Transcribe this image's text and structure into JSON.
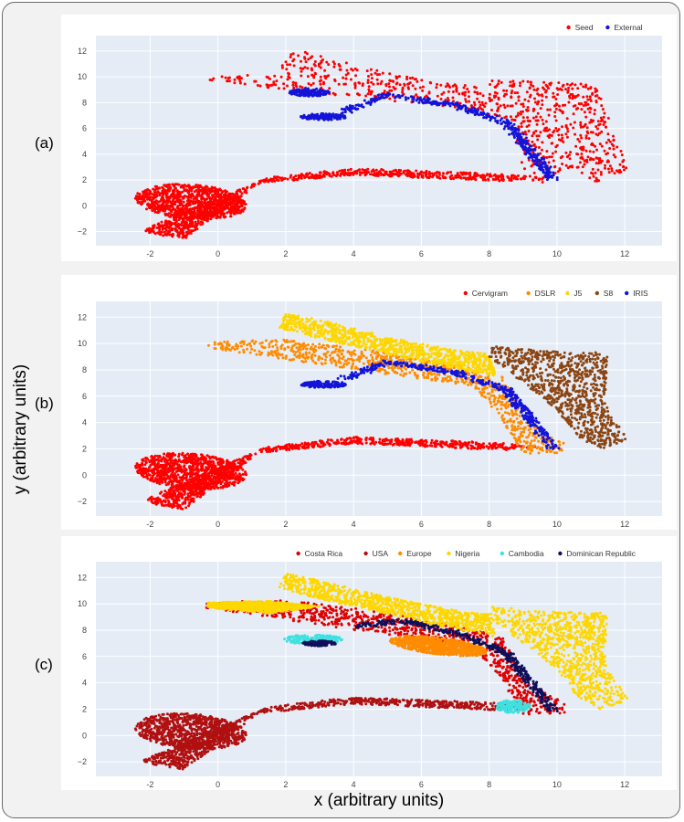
{
  "figure": {
    "xlabel": "x (arbitrary units)",
    "ylabel": "y (arbitrary units)",
    "panel_labels": [
      "(a)",
      "(b)",
      "(c)"
    ]
  },
  "chart_data": [
    {
      "type": "scatter",
      "panel": "(a)",
      "xlim": [
        -3.6,
        13.1
      ],
      "ylim": [
        -3.1,
        13.2
      ],
      "xticks": [
        -2,
        0,
        2,
        4,
        6,
        8,
        10,
        12
      ],
      "yticks": [
        -2,
        0,
        2,
        4,
        6,
        8,
        10,
        12
      ],
      "grid": true,
      "legend_position": "top-right",
      "background": "#e5ecf6",
      "series": [
        {
          "name": "Seed",
          "color": "#ff0000",
          "layer": 0,
          "regions": [
            {
              "shape": "ellipse",
              "cx": -0.8,
              "cy": 0.3,
              "rx": 1.7,
              "ry": 1.3,
              "rot": -25
            },
            {
              "shape": "poly",
              "pts": [
                [
                  -2.3,
                  -2.0
                ],
                [
                  -1.0,
                  -0.5
                ],
                [
                  1.5,
                  2.2
                ],
                [
                  4,
                  2.9
                ],
                [
                  8,
                  2.5
                ],
                [
                  9.5,
                  2.2
                ],
                [
                  8.5,
                  1.9
                ],
                [
                  4,
                  2.4
                ],
                [
                  1.2,
                  1.7
                ],
                [
                  -1.0,
                  -2.6
                ]
              ]
            },
            {
              "shape": "poly",
              "pts": [
                [
                  -0.2,
                  10.1
                ],
                [
                  1.8,
                  10.2
                ],
                [
                  2.1,
                  12.3
                ],
                [
                  4.2,
                  10.8
                ],
                [
                  6.5,
                  9.5
                ],
                [
                  8.0,
                  9.3
                ],
                [
                  8.1,
                  9.8
                ],
                [
                  11.2,
                  9.4
                ],
                [
                  12.1,
                  2.7
                ],
                [
                  11.2,
                  1.8
                ],
                [
                  10.4,
                  3.0
                ],
                [
                  9.6,
                  1.8
                ],
                [
                  9.1,
                  1.7
                ],
                [
                  8.7,
                  6.5
                ],
                [
                  7.2,
                  7.5
                ],
                [
                  4.5,
                  8.3
                ],
                [
                  3.0,
                  8.6
                ],
                [
                  1.0,
                  9.3
                ],
                [
                  -0.4,
                  9.8
                ]
              ]
            }
          ]
        },
        {
          "name": "External",
          "color": "#1414d8",
          "layer": 1,
          "regions": [
            {
              "shape": "line",
              "pts": [
                [
                  3.7,
                  7.3
                ],
                [
                  5.0,
                  8.6
                ],
                [
                  7.0,
                  7.8
                ],
                [
                  8.5,
                  6.5
                ],
                [
                  9.9,
                  2.1
                ]
              ],
              "width": 0.35
            },
            {
              "shape": "ellipse",
              "cx": 3.1,
              "cy": 6.9,
              "rx": 0.7,
              "ry": 0.25,
              "rot": 0
            },
            {
              "shape": "ellipse",
              "cx": 2.7,
              "cy": 8.8,
              "rx": 0.6,
              "ry": 0.3,
              "rot": 0
            }
          ]
        }
      ]
    },
    {
      "type": "scatter",
      "panel": "(b)",
      "xlim": [
        -3.6,
        13.1
      ],
      "ylim": [
        -3.1,
        13.2
      ],
      "xticks": [
        -2,
        0,
        2,
        4,
        6,
        8,
        10,
        12
      ],
      "yticks": [
        -2,
        0,
        2,
        4,
        6,
        8,
        10,
        12
      ],
      "grid": true,
      "legend_position": "top-right",
      "background": "#e5ecf6",
      "series": [
        {
          "name": "Cervigram",
          "color": "#ff0000",
          "layer": 0,
          "regions": [
            {
              "shape": "ellipse",
              "cx": -0.8,
              "cy": 0.3,
              "rx": 1.7,
              "ry": 1.3,
              "rot": -25
            },
            {
              "shape": "poly",
              "pts": [
                [
                  -2.3,
                  -2.0
                ],
                [
                  -1.0,
                  -0.5
                ],
                [
                  1.5,
                  2.2
                ],
                [
                  4,
                  2.9
                ],
                [
                  8,
                  2.5
                ],
                [
                  9.5,
                  2.2
                ],
                [
                  8.5,
                  1.9
                ],
                [
                  4,
                  2.4
                ],
                [
                  1.2,
                  1.7
                ],
                [
                  -1.0,
                  -2.6
                ]
              ]
            }
          ]
        },
        {
          "name": "DSLR",
          "color": "#ff8c00",
          "layer": 1,
          "regions": [
            {
              "shape": "poly",
              "pts": [
                [
                  -0.3,
                  10.1
                ],
                [
                  2.0,
                  10.3
                ],
                [
                  4.5,
                  9.5
                ],
                [
                  7.0,
                  8.4
                ],
                [
                  8.4,
                  7.5
                ],
                [
                  9.1,
                  4.0
                ],
                [
                  10.2,
                  2.5
                ],
                [
                  10.3,
                  1.7
                ],
                [
                  9.0,
                  1.6
                ],
                [
                  8.3,
                  4.5
                ],
                [
                  7.5,
                  6.8
                ],
                [
                  5.5,
                  7.5
                ],
                [
                  3.5,
                  8.2
                ],
                [
                  1.5,
                  9.0
                ],
                [
                  -0.4,
                  9.7
                ]
              ]
            }
          ]
        },
        {
          "name": "J5",
          "color": "#ffd700",
          "layer": 2,
          "regions": [
            {
              "shape": "poly",
              "pts": [
                [
                  2.0,
                  12.3
                ],
                [
                  3.0,
                  11.8
                ],
                [
                  5.0,
                  10.5
                ],
                [
                  7.0,
                  9.5
                ],
                [
                  8.0,
                  9.2
                ],
                [
                  8.2,
                  7.5
                ],
                [
                  6.5,
                  8.3
                ],
                [
                  4.5,
                  9.5
                ],
                [
                  2.8,
                  10.5
                ],
                [
                  1.8,
                  11.2
                ]
              ]
            }
          ]
        },
        {
          "name": "S8",
          "color": "#8b4513",
          "layer": 3,
          "regions": [
            {
              "shape": "poly",
              "pts": [
                [
                  8.1,
                  9.8
                ],
                [
                  9.8,
                  9.4
                ],
                [
                  11.5,
                  9.3
                ],
                [
                  11.4,
                  5.5
                ],
                [
                  12.1,
                  2.7
                ],
                [
                  11.3,
                  2.0
                ],
                [
                  10.6,
                  2.9
                ],
                [
                  10.0,
                  5.0
                ],
                [
                  9.0,
                  7.0
                ],
                [
                  7.9,
                  9.2
                ]
              ]
            }
          ]
        },
        {
          "name": "IRIS",
          "color": "#1414d8",
          "layer": 4,
          "regions": [
            {
              "shape": "line",
              "pts": [
                [
                  3.7,
                  7.3
                ],
                [
                  5.0,
                  8.6
                ],
                [
                  7.0,
                  7.8
                ],
                [
                  8.5,
                  6.5
                ],
                [
                  9.9,
                  2.1
                ]
              ],
              "width": 0.35
            },
            {
              "shape": "ellipse",
              "cx": 3.1,
              "cy": 6.9,
              "rx": 0.7,
              "ry": 0.25,
              "rot": 0
            }
          ]
        }
      ]
    },
    {
      "type": "scatter",
      "panel": "(c)",
      "xlim": [
        -3.6,
        13.1
      ],
      "ylim": [
        -3.1,
        13.2
      ],
      "xticks": [
        -2,
        0,
        2,
        4,
        6,
        8,
        10,
        12
      ],
      "yticks": [
        -2,
        0,
        2,
        4,
        6,
        8,
        10,
        12
      ],
      "grid": true,
      "legend_position": "top-right",
      "background": "#e5ecf6",
      "series": [
        {
          "name": "Costa Rica",
          "color": "#e00000",
          "layer": 0,
          "regions": [
            {
              "shape": "poly",
              "pts": [
                [
                  -0.3,
                  10.1
                ],
                [
                  2.0,
                  10.3
                ],
                [
                  4.5,
                  9.5
                ],
                [
                  7.0,
                  8.4
                ],
                [
                  8.4,
                  7.5
                ],
                [
                  9.1,
                  4.0
                ],
                [
                  10.2,
                  2.5
                ],
                [
                  10.3,
                  1.7
                ],
                [
                  9.0,
                  1.6
                ],
                [
                  8.3,
                  4.5
                ],
                [
                  7.5,
                  6.8
                ],
                [
                  5.5,
                  7.5
                ],
                [
                  3.5,
                  8.2
                ],
                [
                  1.5,
                  9.0
                ],
                [
                  -0.4,
                  9.7
                ]
              ]
            }
          ]
        },
        {
          "name": "USA",
          "color": "#b01010",
          "layer": 1,
          "regions": [
            {
              "shape": "ellipse",
              "cx": -0.8,
              "cy": 0.3,
              "rx": 1.7,
              "ry": 1.3,
              "rot": -25
            },
            {
              "shape": "poly",
              "pts": [
                [
                  -2.3,
                  -2.0
                ],
                [
                  -1.0,
                  -0.5
                ],
                [
                  1.5,
                  2.2
                ],
                [
                  4,
                  2.9
                ],
                [
                  8,
                  2.5
                ],
                [
                  9.5,
                  2.2
                ],
                [
                  8.5,
                  1.9
                ],
                [
                  4,
                  2.4
                ],
                [
                  1.2,
                  1.7
                ],
                [
                  -1.0,
                  -2.6
                ]
              ]
            }
          ]
        },
        {
          "name": "Europe",
          "color": "#ff8c00",
          "layer": 2,
          "regions": [
            {
              "shape": "ellipse",
              "cx": 6.5,
              "cy": 6.8,
              "rx": 1.5,
              "ry": 0.6,
              "rot": -20
            }
          ]
        },
        {
          "name": "Nigeria",
          "color": "#ffd700",
          "layer": 3,
          "regions": [
            {
              "shape": "poly",
              "pts": [
                [
                  2.0,
                  12.3
                ],
                [
                  3.0,
                  11.8
                ],
                [
                  5.0,
                  10.5
                ],
                [
                  7.0,
                  9.5
                ],
                [
                  8.0,
                  9.2
                ],
                [
                  8.2,
                  7.5
                ],
                [
                  6.5,
                  8.3
                ],
                [
                  4.5,
                  9.5
                ],
                [
                  2.8,
                  10.5
                ],
                [
                  1.8,
                  11.2
                ]
              ]
            },
            {
              "shape": "poly",
              "pts": [
                [
                  8.1,
                  9.8
                ],
                [
                  9.8,
                  9.4
                ],
                [
                  11.5,
                  9.3
                ],
                [
                  11.4,
                  5.5
                ],
                [
                  12.1,
                  2.7
                ],
                [
                  11.3,
                  2.0
                ],
                [
                  10.6,
                  2.9
                ],
                [
                  10.0,
                  5.0
                ],
                [
                  9.0,
                  7.0
                ],
                [
                  7.9,
                  9.2
                ]
              ]
            },
            {
              "shape": "poly",
              "pts": [
                [
                  -0.3,
                  10.1
                ],
                [
                  1.5,
                  10.2
                ],
                [
                  3.0,
                  9.8
                ],
                [
                  1.5,
                  9.3
                ],
                [
                  -0.3,
                  9.7
                ]
              ]
            }
          ]
        },
        {
          "name": "Cambodia",
          "color": "#40e0e0",
          "layer": 4,
          "regions": [
            {
              "shape": "ellipse",
              "cx": 2.8,
              "cy": 7.3,
              "rx": 0.9,
              "ry": 0.35,
              "rot": 0
            },
            {
              "shape": "ellipse",
              "cx": 8.7,
              "cy": 2.2,
              "rx": 0.5,
              "ry": 0.5,
              "rot": 0
            }
          ]
        },
        {
          "name": "Dominican Republic",
          "color": "#10105a",
          "layer": 5,
          "regions": [
            {
              "shape": "line",
              "pts": [
                [
                  4.0,
                  8.3
                ],
                [
                  5.5,
                  8.7
                ],
                [
                  7.0,
                  7.8
                ],
                [
                  8.5,
                  6.3
                ],
                [
                  9.9,
                  1.9
                ]
              ],
              "width": 0.3
            },
            {
              "shape": "ellipse",
              "cx": 3.0,
              "cy": 7.0,
              "rx": 0.5,
              "ry": 0.2,
              "rot": 0
            }
          ]
        }
      ]
    }
  ]
}
